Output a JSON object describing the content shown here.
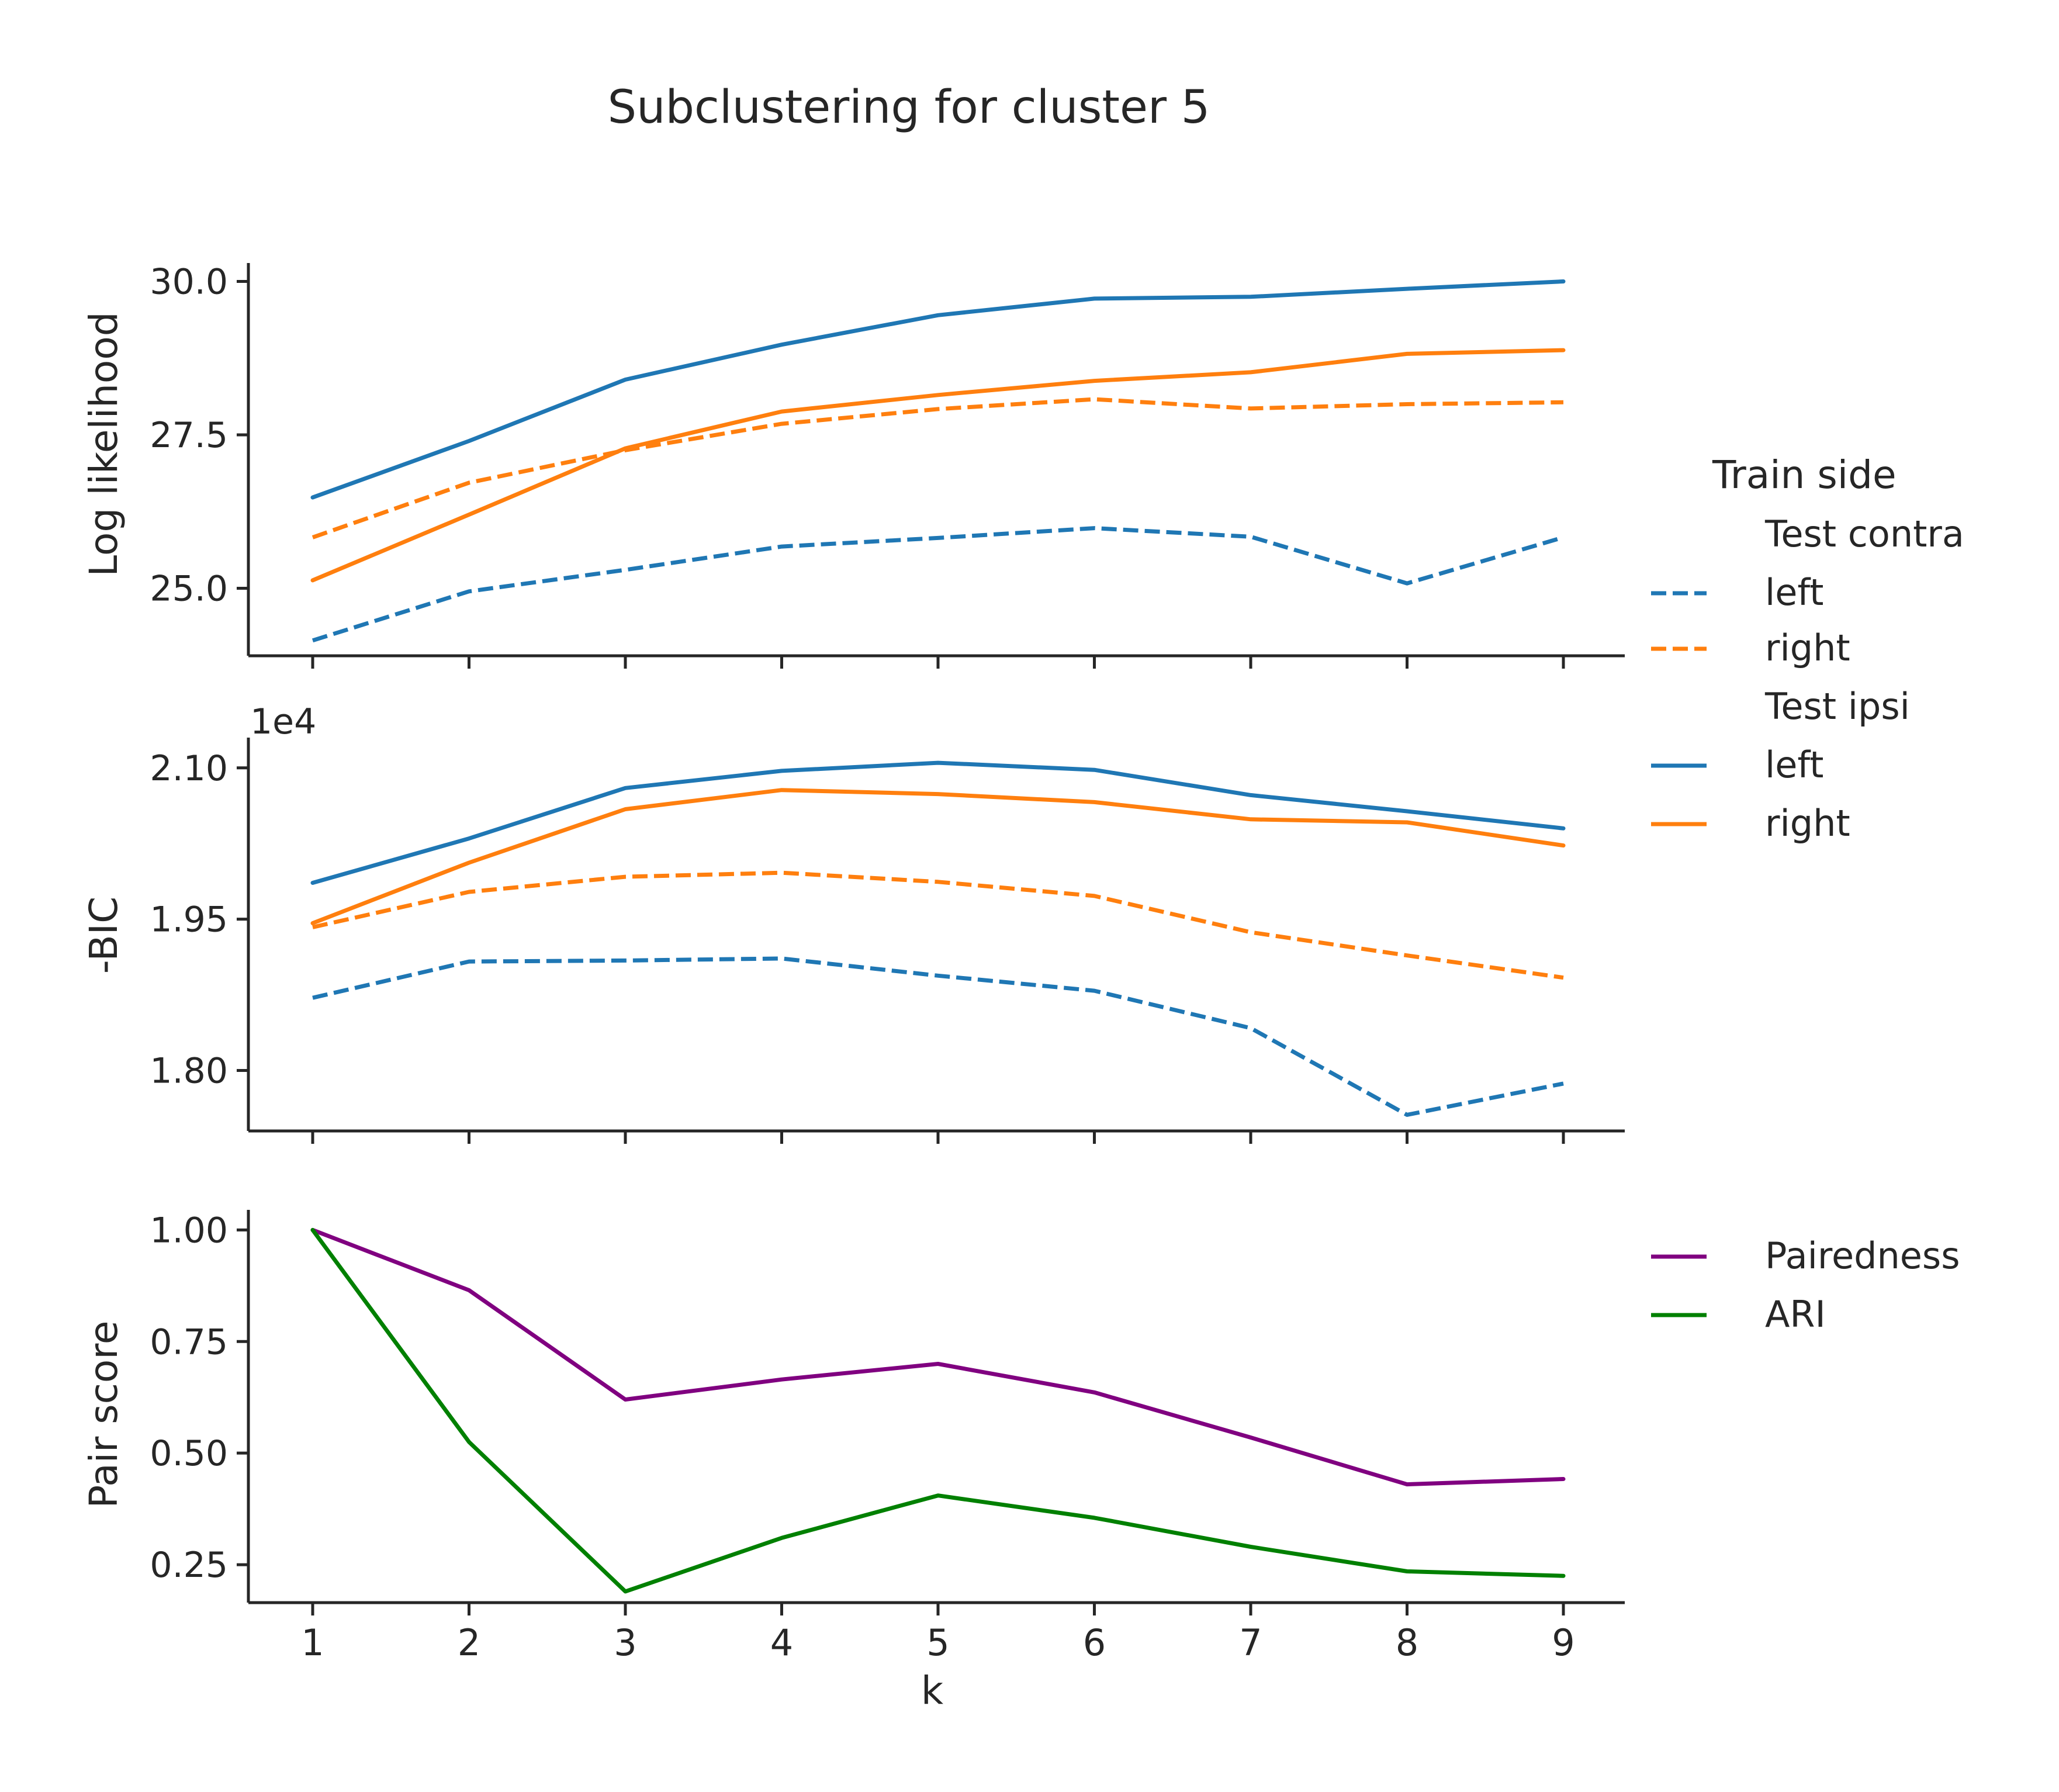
{
  "figure": {
    "title": "Subclustering for cluster 5",
    "xlabel": "k",
    "x_ticks": [
      "1",
      "2",
      "3",
      "4",
      "5",
      "6",
      "7",
      "8",
      "9"
    ]
  },
  "legend_train": {
    "title": "Train side",
    "group1": "Test contra",
    "group1_left": "left",
    "group1_right": "right",
    "group2": "Test ipsi",
    "group2_left": "left",
    "group2_right": "right"
  },
  "legend_pair": {
    "item1": "Pairedness",
    "item2": "ARI"
  },
  "colors": {
    "left": "#1f77b4",
    "right": "#ff7f0e",
    "pairedness": "#800080",
    "ari": "#008000",
    "axis": "#262626"
  },
  "chart_data": [
    {
      "type": "line",
      "ylabel": "Log likelihood",
      "x": [
        1,
        2,
        3,
        4,
        5,
        6,
        7,
        8,
        9
      ],
      "ylim": [
        23.9,
        30.3
      ],
      "yticks": [
        25.0,
        27.5,
        30.0
      ],
      "ytick_labels": [
        "25.0",
        "27.5",
        "30.0"
      ],
      "series": [
        {
          "side": "left",
          "test": "contra",
          "style": "dashed",
          "values": [
            24.15,
            24.95,
            25.3,
            25.68,
            25.82,
            25.98,
            25.84,
            25.08,
            25.83
          ]
        },
        {
          "side": "right",
          "test": "contra",
          "style": "dashed",
          "values": [
            25.83,
            26.72,
            27.25,
            27.68,
            27.92,
            28.08,
            27.93,
            28.0,
            28.03
          ]
        },
        {
          "side": "left",
          "test": "ipsi",
          "style": "solid",
          "values": [
            26.48,
            27.4,
            28.4,
            28.97,
            29.45,
            29.72,
            29.75,
            29.88,
            30.0
          ]
        },
        {
          "side": "right",
          "test": "ipsi",
          "style": "solid",
          "values": [
            25.13,
            26.2,
            27.28,
            27.88,
            28.15,
            28.38,
            28.52,
            28.82,
            28.88
          ]
        }
      ]
    },
    {
      "type": "line",
      "ylabel": "-BIC",
      "offset_label": "1e4",
      "x": [
        1,
        2,
        3,
        4,
        5,
        6,
        7,
        8,
        9
      ],
      "ylim": [
        1.74,
        2.13
      ],
      "yticks": [
        1.8,
        1.95,
        2.1
      ],
      "ytick_labels": [
        "1.80",
        "1.95",
        "2.10"
      ],
      "series": [
        {
          "side": "left",
          "test": "contra",
          "style": "dashed",
          "values": [
            1.872,
            1.908,
            1.909,
            1.911,
            1.894,
            1.879,
            1.842,
            1.756,
            1.787
          ]
        },
        {
          "side": "right",
          "test": "contra",
          "style": "dashed",
          "values": [
            1.942,
            1.977,
            1.992,
            1.996,
            1.987,
            1.973,
            1.937,
            1.914,
            1.892
          ]
        },
        {
          "side": "left",
          "test": "ipsi",
          "style": "solid",
          "values": [
            1.986,
            2.03,
            2.08,
            2.097,
            2.105,
            2.098,
            2.073,
            2.057,
            2.04
          ]
        },
        {
          "side": "right",
          "test": "ipsi",
          "style": "solid",
          "values": [
            1.946,
            2.006,
            2.059,
            2.078,
            2.074,
            2.066,
            2.049,
            2.046,
            2.023
          ]
        }
      ]
    },
    {
      "type": "line",
      "ylabel": "Pair score",
      "x": [
        1,
        2,
        3,
        4,
        5,
        6,
        7,
        8,
        9
      ],
      "ylim": [
        0.165,
        1.045
      ],
      "yticks": [
        0.25,
        0.5,
        0.75,
        1.0
      ],
      "ytick_labels": [
        "0.25",
        "0.50",
        "0.75",
        "1.00"
      ],
      "series": [
        {
          "name": "Pairedness",
          "style": "solid",
          "values": [
            1.0,
            0.865,
            0.62,
            0.665,
            0.7,
            0.636,
            0.535,
            0.43,
            0.442
          ]
        },
        {
          "name": "ARI",
          "style": "solid",
          "values": [
            1.0,
            0.525,
            0.19,
            0.31,
            0.405,
            0.355,
            0.29,
            0.235,
            0.225
          ]
        }
      ]
    }
  ]
}
